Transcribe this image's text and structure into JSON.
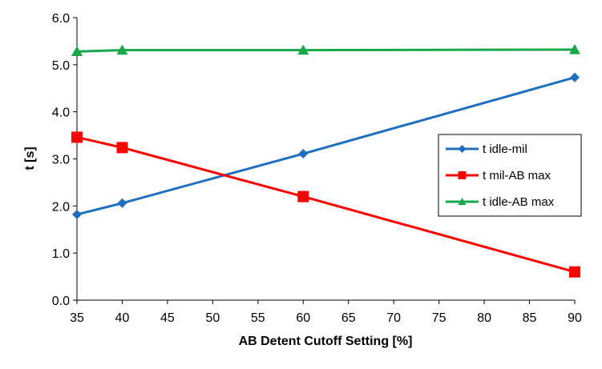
{
  "chart_data": {
    "type": "line",
    "xlabel": "AB Detent Cutoff Setting [%]",
    "ylabel": "t [s]",
    "xlim": [
      35,
      90
    ],
    "ylim": [
      0,
      6
    ],
    "x_ticks": [
      "35",
      "40",
      "45",
      "50",
      "55",
      "60",
      "65",
      "70",
      "75",
      "80",
      "85",
      "90"
    ],
    "y_ticks": [
      "0.0",
      "1.0",
      "2.0",
      "3.0",
      "4.0",
      "5.0",
      "6.0"
    ],
    "grid": false,
    "legend_position": "right",
    "series": [
      {
        "name": "t idle-mil",
        "color": "#1f6fc0",
        "marker": "diamond",
        "x": [
          35,
          40,
          60,
          90
        ],
        "y": [
          1.82,
          2.06,
          3.11,
          4.73
        ]
      },
      {
        "name": "t mil-AB max",
        "color": "#ff0000",
        "marker": "square",
        "x": [
          35,
          40,
          60,
          90
        ],
        "y": [
          3.46,
          3.24,
          2.2,
          0.6
        ]
      },
      {
        "name": "t idle-AB max",
        "color": "#18a84a",
        "marker": "triangle",
        "x": [
          35,
          40,
          60,
          90
        ],
        "y": [
          5.28,
          5.31,
          5.31,
          5.32
        ]
      }
    ]
  }
}
